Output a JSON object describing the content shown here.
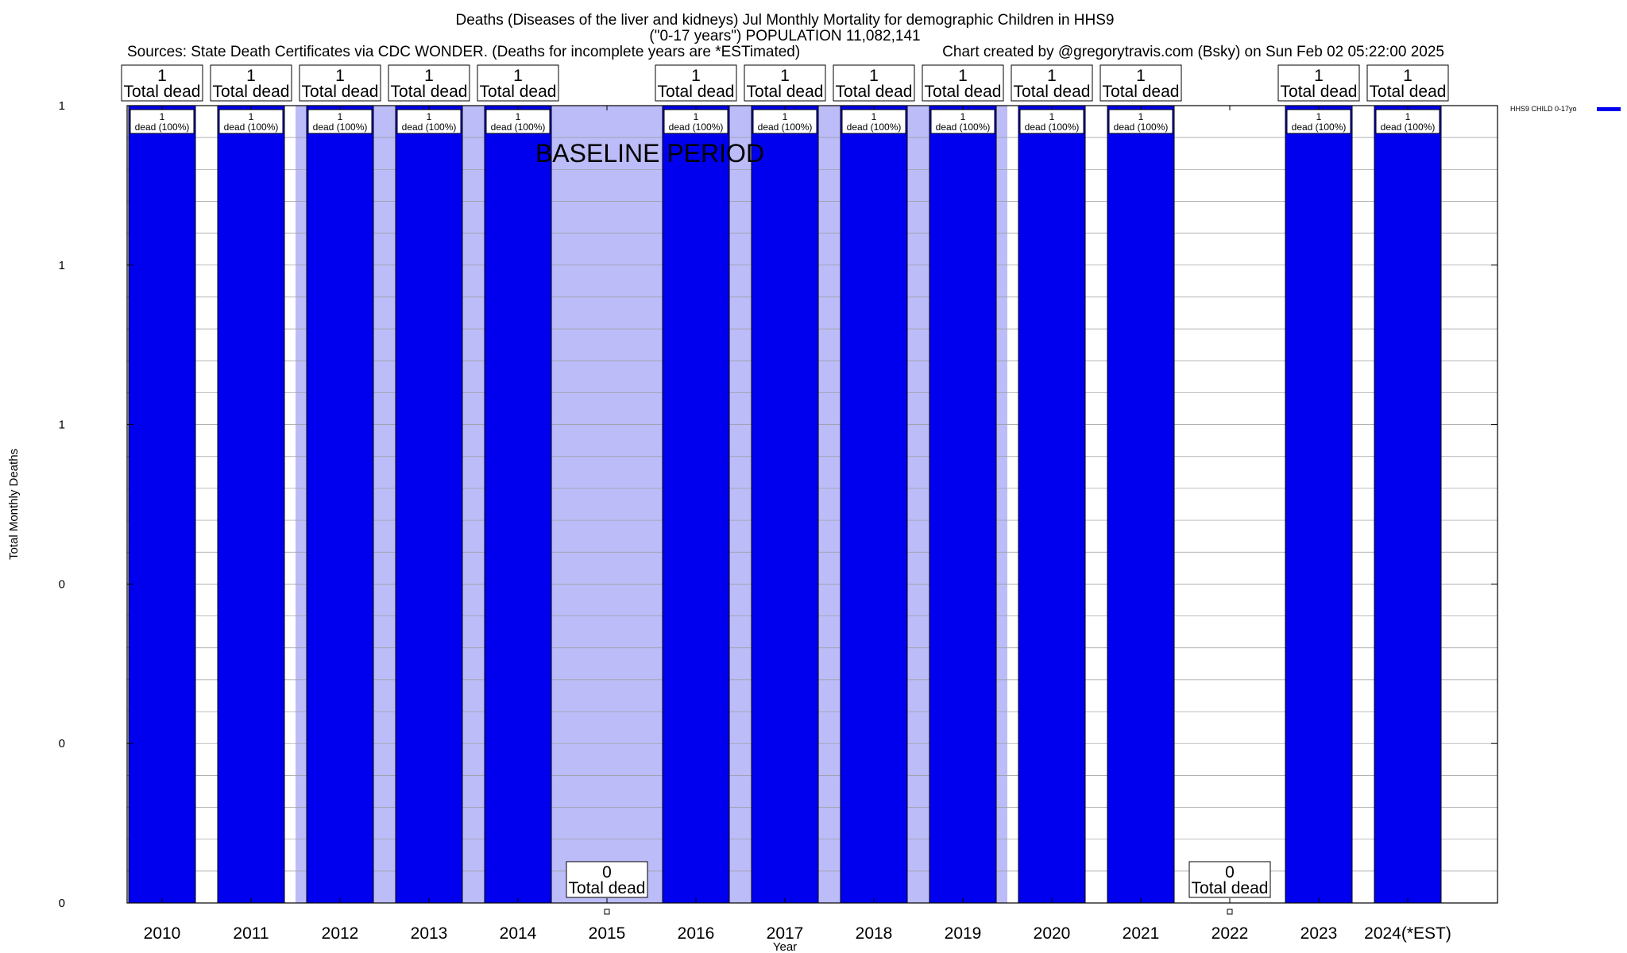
{
  "chart_data": {
    "type": "bar",
    "title_lines": [
      "Deaths (Diseases of the liver and kidneys) Jul Monthly Mortality for demographic Children in HHS9",
      "(\"0-17 years\") POPULATION 11,082,141"
    ],
    "sources": "Sources: State Death Certificates via CDC WONDER. (Deaths for incomplete years are *ESTimated)",
    "credit": "Chart created by @gregorytravis.com (Bsky) on Sun Feb 02 05:22:00 2025",
    "xlabel": "Year",
    "ylabel": "Total Monthly Deaths",
    "ylim": [
      0,
      1
    ],
    "y_tick_labels": [
      "0",
      "0",
      "0",
      "1",
      "1",
      "1"
    ],
    "categories": [
      "2010",
      "2011",
      "2012",
      "2013",
      "2014",
      "2015",
      "2016",
      "2017",
      "2018",
      "2019",
      "2020",
      "2021",
      "2022",
      "2023",
      "2024(*EST)"
    ],
    "series": [
      {
        "name": "HHS9 CHILD 0-17yo",
        "color": "#0000ee",
        "values": [
          1,
          1,
          1,
          1,
          1,
          0,
          1,
          1,
          1,
          1,
          1,
          1,
          0,
          1,
          1
        ]
      }
    ],
    "total_labels": [
      "1",
      "1",
      "1",
      "1",
      "1",
      "0",
      "1",
      "1",
      "1",
      "1",
      "1",
      "1",
      "0",
      "1",
      "1"
    ],
    "total_word": "Total dead",
    "bar_labels": [
      [
        "1",
        "dead (100%)"
      ],
      [
        "1",
        "dead (100%)"
      ],
      [
        "1",
        "dead (100%)"
      ],
      [
        "1",
        "dead (100%)"
      ],
      [
        "1",
        "dead (100%)"
      ],
      null,
      [
        "1",
        "dead (100%)"
      ],
      [
        "1",
        "dead (100%)"
      ],
      [
        "1",
        "dead (100%)"
      ],
      [
        "1",
        "dead (100%)"
      ],
      [
        "1",
        "dead (100%)"
      ],
      [
        "1",
        "dead (100%)"
      ],
      null,
      [
        "1",
        "dead (100%)"
      ],
      [
        "1",
        "dead (100%)"
      ]
    ],
    "baseline": {
      "label": "BASELINE PERIOD",
      "start": "2012",
      "end": "2019",
      "color": "#bcbcf8"
    },
    "legend_placement": "top-right",
    "grid": true
  }
}
